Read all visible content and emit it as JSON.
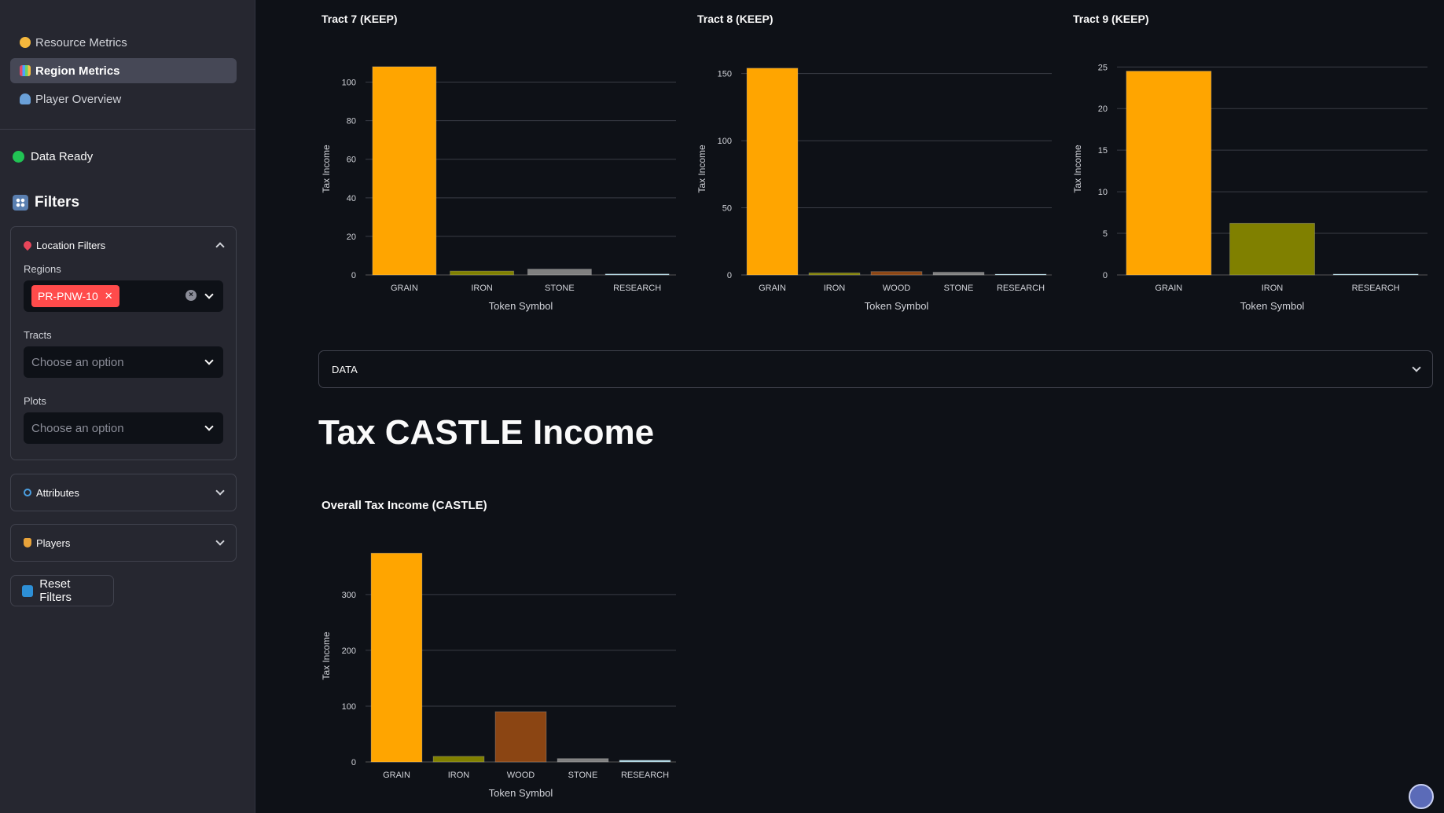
{
  "sidebar": {
    "nav": [
      {
        "label": "Resource Metrics",
        "icon": "coin-icon",
        "active": false
      },
      {
        "label": "Region Metrics",
        "icon": "bar-chart-icon",
        "active": true
      },
      {
        "label": "Player Overview",
        "icon": "player-icon",
        "active": false
      }
    ],
    "status": "Data Ready",
    "filters_title": "Filters",
    "location": {
      "title": "Location Filters",
      "regions_label": "Regions",
      "regions_selected": "PR-PNW-10",
      "tracts_label": "Tracts",
      "tracts_placeholder": "Choose an option",
      "plots_label": "Plots",
      "plots_placeholder": "Choose an option"
    },
    "attributes_title": "Attributes",
    "players_title": "Players",
    "reset_label": "Reset Filters"
  },
  "main": {
    "data_expander": "DATA",
    "castle_heading": "Tax CASTLE Income"
  },
  "colors": {
    "GRAIN": "#ffa500",
    "IRON": "#808000",
    "WOOD": "#8b4513",
    "STONE": "#808080",
    "RESEARCH": "#add8e6"
  },
  "chart_data": [
    {
      "type": "bar",
      "title": "Tract 7 (KEEP)",
      "categories": [
        "GRAIN",
        "IRON",
        "STONE",
        "RESEARCH"
      ],
      "values": [
        108,
        2,
        3,
        0.5
      ],
      "xlabel": "Token Symbol",
      "ylabel": "Tax Income",
      "ylim": [
        0,
        110
      ],
      "yticks": [
        0,
        20,
        40,
        60,
        80,
        100
      ],
      "grid": true
    },
    {
      "type": "bar",
      "title": "Tract 8 (KEEP)",
      "categories": [
        "GRAIN",
        "IRON",
        "WOOD",
        "STONE",
        "RESEARCH"
      ],
      "values": [
        154,
        1.5,
        2.5,
        2,
        0.5
      ],
      "xlabel": "Token Symbol",
      "ylabel": "Tax Income",
      "ylim": [
        0,
        158
      ],
      "yticks": [
        0,
        50,
        100,
        150
      ],
      "grid": true
    },
    {
      "type": "bar",
      "title": "Tract 9 (KEEP)",
      "categories": [
        "GRAIN",
        "IRON",
        "RESEARCH"
      ],
      "values": [
        24.5,
        6.2,
        0.1
      ],
      "xlabel": "Token Symbol",
      "ylabel": "Tax Income",
      "ylim": [
        0,
        25.5
      ],
      "yticks": [
        0,
        5,
        10,
        15,
        20,
        25
      ],
      "grid": true
    },
    {
      "type": "bar",
      "title": "Overall Tax Income (CASTLE)",
      "categories": [
        "GRAIN",
        "IRON",
        "WOOD",
        "STONE",
        "RESEARCH"
      ],
      "values": [
        374,
        10,
        90,
        6,
        3
      ],
      "xlabel": "Token Symbol",
      "ylabel": "Tax Income",
      "ylim": [
        0,
        380
      ],
      "yticks": [
        0,
        100,
        200,
        300
      ],
      "grid": true
    }
  ]
}
